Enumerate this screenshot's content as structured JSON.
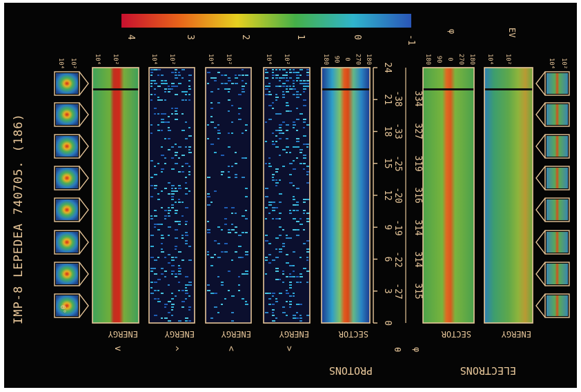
{
  "title": {
    "mission": "IMP-8",
    "instrument": "LEPEDEA",
    "date_code": "740705.",
    "day_code": "(186)"
  },
  "colorbar": {
    "labels": [
      "4",
      "3",
      "2",
      "1",
      "0",
      "-1"
    ],
    "colors": [
      "#c8102e",
      "#e8641a",
      "#e6d020",
      "#45b048",
      "#2fb4cc",
      "#2a56b8"
    ]
  },
  "ev_label": "EV",
  "flux_scale": {
    "high": "10⁴",
    "low": "10²"
  },
  "sector_ticks": [
    "180",
    "90",
    "0",
    "270",
    "180"
  ],
  "electron_sector_ticks": [
    "180",
    "90",
    "0",
    "270",
    "180"
  ],
  "angle_marker": "θ°",
  "hour_ticks": [
    "0",
    "3",
    "6",
    "9",
    "12",
    "15",
    "18",
    "21",
    "24"
  ],
  "theta_values": [
    "-27",
    "-22",
    "-19",
    "-20",
    "-25",
    "-33",
    "-38"
  ],
  "phi_values": [
    "315",
    "314",
    "314",
    "316",
    "319",
    "327",
    "334"
  ],
  "proton_panel_labels": [
    "ENERGY",
    "ENERGY",
    "ENERGY",
    "ENERGY",
    "SECTOR"
  ],
  "proton_panel_marks": [
    "v",
    "^",
    "<",
    ">"
  ],
  "electron_panel_labels": [
    "SECTOR",
    "ENERGY"
  ],
  "axis_symbols": {
    "theta": "θ",
    "phi": "φ",
    "phi_top": "φ"
  },
  "groups": {
    "protons": "PROTONS",
    "electrons": "ELECTRONS"
  }
}
